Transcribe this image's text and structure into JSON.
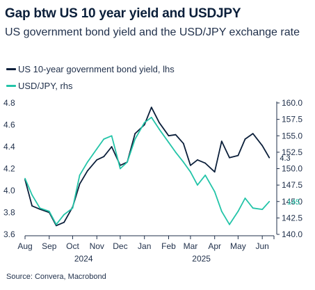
{
  "title": "Gap btw US 10 year yield and USDJPY",
  "subtitle": "US government bond yield and the USD/JPY exchange rate",
  "source": "Source: Convera, Macrobond",
  "colors": {
    "navy": "#0b1f3a",
    "teal": "#23c4a8",
    "axis": "#1f2f4a"
  },
  "chart_data": {
    "type": "line",
    "x": [
      "2024-08-01",
      "2024-08-10",
      "2024-08-20",
      "2024-09-01",
      "2024-09-10",
      "2024-09-20",
      "2024-10-01",
      "2024-10-10",
      "2024-10-20",
      "2024-11-01",
      "2024-11-10",
      "2024-11-20",
      "2024-12-01",
      "2024-12-10",
      "2024-12-20",
      "2025-01-01",
      "2025-01-10",
      "2025-01-20",
      "2025-02-01",
      "2025-02-10",
      "2025-02-20",
      "2025-03-01",
      "2025-03-10",
      "2025-03-20",
      "2025-04-01",
      "2025-04-10",
      "2025-04-20",
      "2025-05-01",
      "2025-05-10",
      "2025-05-20",
      "2025-06-01",
      "2025-06-10"
    ],
    "series": [
      {
        "name": "US 10-year government bond yield, lhs",
        "axis": "left",
        "color": "#0b1f3a",
        "values": [
          4.1,
          3.86,
          3.83,
          3.8,
          3.68,
          3.71,
          3.85,
          4.06,
          4.18,
          4.28,
          4.31,
          4.4,
          4.23,
          4.26,
          4.52,
          4.6,
          4.76,
          4.62,
          4.5,
          4.51,
          4.43,
          4.23,
          4.28,
          4.25,
          4.17,
          4.45,
          4.3,
          4.32,
          4.47,
          4.52,
          4.41,
          4.3
        ]
      },
      {
        "name": "USD/JPY, rhs",
        "axis": "right",
        "color": "#23c4a8",
        "values": [
          148.5,
          146.0,
          144.0,
          143.5,
          141.5,
          143.0,
          144.0,
          149.0,
          151.0,
          153.0,
          154.5,
          155.0,
          150.0,
          151.0,
          154.5,
          157.0,
          157.8,
          156.0,
          154.0,
          152.5,
          151.0,
          149.5,
          147.5,
          149.0,
          146.5,
          143.5,
          141.5,
          143.5,
          145.5,
          144.0,
          143.8,
          145.0
        ]
      }
    ],
    "end_labels": {
      "left": "4.3",
      "right": "145"
    },
    "xlabels": [
      "Aug",
      "Sep",
      "Oct",
      "Nov",
      "Dec",
      "Jan",
      "Feb",
      "Mar",
      "Apr",
      "May",
      "Jun"
    ],
    "xlabel_dates": [
      "2024-08-01",
      "2024-09-01",
      "2024-10-01",
      "2024-11-01",
      "2024-12-01",
      "2025-01-01",
      "2025-02-01",
      "2025-03-01",
      "2025-04-01",
      "2025-05-01",
      "2025-06-01"
    ],
    "years": [
      "2024",
      "2025"
    ],
    "year_dates": [
      "2024-10-15",
      "2025-03-15"
    ],
    "y_left": {
      "min": 3.6,
      "max": 4.8,
      "ticks": [
        "3.6",
        "3.8",
        "4.0",
        "4.2",
        "4.4",
        "4.6",
        "4.8"
      ]
    },
    "y_right": {
      "min": 140.0,
      "max": 160.0,
      "ticks": [
        "140.0",
        "142.5",
        "145.0",
        "147.5",
        "150.0",
        "152.5",
        "155.0",
        "157.5",
        "160.0"
      ]
    },
    "grid": false,
    "legend": "top-left"
  }
}
